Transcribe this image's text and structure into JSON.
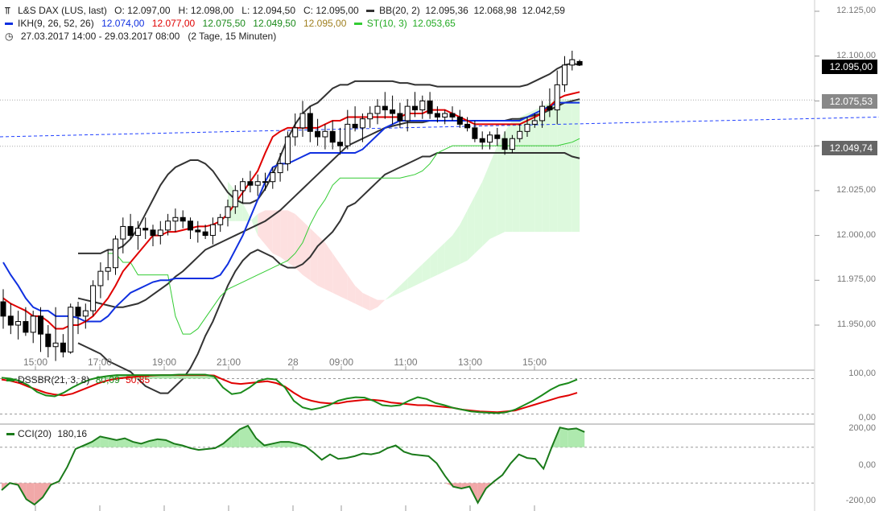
{
  "header": {
    "symbol": "L&S DAX (LUS, last)",
    "ohlc": "O: 12.097,00   H: 12.098,00   L: 12.094,50   C: 12.095,00",
    "bb": "BB(20, 2)  12.095,36  12.068,98  12.042,59",
    "ikh_name": "IKH(9, 26, 52, 26)",
    "ikh_v1": "12.074,00",
    "ikh_v2": "12.077,00",
    "ikh_v3": "12.075,50",
    "ikh_v4": "12.049,50",
    "ikh_v5": "12.095,00",
    "st": "ST(10, 3)  12.053,65",
    "range": "27.03.2017 14:00 - 29.03.2017 08:00   (2 Tage, 15 Minuten)"
  },
  "price_labels": {
    "last": "12.095,00",
    "bb_mid": "12.075,53",
    "st": "12.049,74"
  },
  "price_axis": [
    "12.125,00",
    "12.100,00",
    "12.075,00",
    "12.050,00",
    "12.025,00",
    "12.000,00",
    "11.975,00",
    "11.950,00"
  ],
  "time_axis": [
    "15:00",
    "17:00",
    "19:00",
    "21:00",
    "28",
    "09:00",
    "11:00",
    "13:00",
    "15:00"
  ],
  "dssbr": {
    "name": "DSSBR(21, 3, 8)",
    "v1": "80,09",
    "v2": "50,85",
    "axis": [
      "100,00",
      "0,00"
    ]
  },
  "cci": {
    "name": "CCI(20)",
    "value": "180,16",
    "axis": [
      "200,00",
      "0,00",
      "-200,00"
    ]
  },
  "colors": {
    "up": "#ffffff",
    "down": "#000000",
    "tenkan": "#e00000",
    "kijun": "#1030e0",
    "supertrend": "#33cc33",
    "bb": "#333333",
    "cloud_up": "#ddf9dd",
    "cloud_down": "#fde0e0",
    "dss_main": "#1a8a1a",
    "dss_signal": "#e00000",
    "cci": "#1a7a1a"
  },
  "chart_data": {
    "type": "candlestick",
    "ylim": [
      11930,
      12130
    ],
    "candles": [
      [
        11963,
        11970,
        11948,
        11955
      ],
      [
        11955,
        11962,
        11945,
        11950
      ],
      [
        11950,
        11958,
        11942,
        11952
      ],
      [
        11952,
        11960,
        11944,
        11946
      ],
      [
        11946,
        11958,
        11940,
        11955
      ],
      [
        11955,
        11960,
        11935,
        11945
      ],
      [
        11945,
        11950,
        11932,
        11938
      ],
      [
        11938,
        11960,
        11930,
        11940
      ],
      [
        11940,
        11945,
        11932,
        11935
      ],
      [
        11935,
        11962,
        11934,
        11960
      ],
      [
        11960,
        11963,
        11945,
        11955
      ],
      [
        11955,
        11962,
        11948,
        11958
      ],
      [
        11958,
        11975,
        11955,
        11972
      ],
      [
        11972,
        11985,
        11965,
        11980
      ],
      [
        11980,
        11992,
        11975,
        11982
      ],
      [
        11982,
        12000,
        11978,
        11998
      ],
      [
        11998,
        12010,
        11990,
        12005
      ],
      [
        12005,
        12012,
        11998,
        12000
      ],
      [
        12000,
        12008,
        11992,
        12004
      ],
      [
        12004,
        12010,
        11998,
        12003
      ],
      [
        12003,
        12006,
        11994,
        12000
      ],
      [
        12000,
        12008,
        11995,
        12003
      ],
      [
        12003,
        12012,
        12000,
        12008
      ],
      [
        12008,
        12015,
        12002,
        12010
      ],
      [
        12010,
        12014,
        12004,
        12008
      ],
      [
        12008,
        12010,
        11998,
        12003
      ],
      [
        12003,
        12008,
        11996,
        12002
      ],
      [
        12002,
        12006,
        11998,
        12000
      ],
      [
        12000,
        12010,
        11995,
        12006
      ],
      [
        12006,
        12012,
        12002,
        12010
      ],
      [
        12010,
        12020,
        12005,
        12016
      ],
      [
        12016,
        12028,
        12012,
        12025
      ],
      [
        12025,
        12032,
        12018,
        12030
      ],
      [
        12030,
        12036,
        12024,
        12028
      ],
      [
        12028,
        12034,
        12022,
        12030
      ],
      [
        12030,
        12035,
        12025,
        12030
      ],
      [
        12030,
        12038,
        12026,
        12035
      ],
      [
        12035,
        12046,
        12030,
        12040
      ],
      [
        12040,
        12058,
        12036,
        12055
      ],
      [
        12055,
        12068,
        12050,
        12060
      ],
      [
        12060,
        12075,
        12055,
        12068
      ],
      [
        12068,
        12072,
        12052,
        12058
      ],
      [
        12058,
        12065,
        12050,
        12055
      ],
      [
        12055,
        12062,
        12048,
        12058
      ],
      [
        12058,
        12064,
        12048,
        12052
      ],
      [
        12052,
        12060,
        12045,
        12050
      ],
      [
        12050,
        12070,
        12048,
        12062
      ],
      [
        12062,
        12072,
        12058,
        12060
      ],
      [
        12060,
        12068,
        12052,
        12065
      ],
      [
        12065,
        12072,
        12060,
        12068
      ],
      [
        12068,
        12076,
        12062,
        12072
      ],
      [
        12072,
        12080,
        12065,
        12070
      ],
      [
        12070,
        12078,
        12062,
        12068
      ],
      [
        12068,
        12074,
        12060,
        12064
      ],
      [
        12064,
        12076,
        12058,
        12072
      ],
      [
        12072,
        12080,
        12066,
        12070
      ],
      [
        12070,
        12078,
        12065,
        12075
      ],
      [
        12075,
        12080,
        12065,
        12068
      ],
      [
        12068,
        12072,
        12063,
        12066
      ],
      [
        12066,
        12070,
        12062,
        12068
      ],
      [
        12068,
        12072,
        12064,
        12066
      ],
      [
        12066,
        12070,
        12060,
        12062
      ],
      [
        12062,
        12066,
        12058,
        12060
      ],
      [
        12060,
        12064,
        12052,
        12054
      ],
      [
        12054,
        12058,
        12048,
        12052
      ],
      [
        12052,
        12058,
        12048,
        12056
      ],
      [
        12056,
        12060,
        12050,
        12054
      ],
      [
        12054,
        12058,
        12045,
        12048
      ],
      [
        12048,
        12056,
        12046,
        12054
      ],
      [
        12054,
        12062,
        12052,
        12058
      ],
      [
        12058,
        12066,
        12055,
        12062
      ],
      [
        12062,
        12068,
        12060,
        12064
      ],
      [
        12064,
        12075,
        12060,
        12072
      ],
      [
        12072,
        12082,
        12066,
        12070
      ],
      [
        12070,
        12092,
        12062,
        12084
      ],
      [
        12084,
        12100,
        12080,
        12095
      ],
      [
        12095,
        12103,
        12092,
        12098
      ],
      [
        12097,
        12098,
        12094.5,
        12095
      ]
    ],
    "tenkan": [
      11965,
      11962,
      11960,
      11958,
      11955,
      11955,
      11952,
      11948,
      11948,
      11950,
      11950,
      11952,
      11955,
      11960,
      11965,
      11972,
      11980,
      11985,
      11990,
      11995,
      12000,
      12000,
      12002,
      12002,
      12003,
      12004,
      12005,
      12005,
      12006,
      12008,
      12012,
      12018,
      12024,
      12030,
      12036,
      12046,
      12055,
      12058,
      12060,
      12060,
      12060,
      12060,
      12060,
      12062,
      12064,
      12064,
      12066,
      12066,
      12066,
      12066,
      12066,
      12066,
      12066,
      12066,
      12068,
      12068,
      12068,
      12070,
      12070,
      12070,
      12068,
      12066,
      12064,
      12062,
      12062,
      12062,
      12062,
      12062,
      12062,
      12062,
      12064,
      12066,
      12068,
      12072,
      12076,
      12078,
      12079,
      12080
    ],
    "kijun": [
      11985,
      11978,
      11972,
      11965,
      11960,
      11958,
      11958,
      11955,
      11955,
      11955,
      11954,
      11952,
      11952,
      11952,
      11955,
      11960,
      11964,
      11968,
      11970,
      11972,
      11974,
      11975,
      11975,
      11976,
      11976,
      11976,
      11976,
      11976,
      11976,
      11978,
      11984,
      11992,
      12000,
      12010,
      12020,
      12030,
      12038,
      12040,
      12040,
      12042,
      12044,
      12046,
      12046,
      12046,
      12046,
      12046,
      12046,
      12046,
      12048,
      12052,
      12056,
      12060,
      12062,
      12064,
      12064,
      12064,
      12064,
      12064,
      12064,
      12064,
      12064,
      12064,
      12064,
      12064,
      12064,
      12064,
      12064,
      12064,
      12064,
      12064,
      12066,
      12068,
      12070,
      12072,
      12074,
      12074,
      12074,
      12074
    ],
    "bb_upper": [
      11990,
      11990,
      11990,
      11990,
      11992,
      11992,
      11994,
      11998,
      12004,
      12012,
      12020,
      12028,
      12034,
      12038,
      12040,
      12042,
      12042,
      12040,
      12036,
      12030,
      12024,
      12020,
      12018,
      12018,
      12020,
      12026,
      12034,
      12044,
      12054,
      12062,
      12068,
      12072,
      12074,
      12078,
      12082,
      12084,
      12084,
      12086,
      12086,
      12086,
      12086,
      12086,
      12086,
      12085,
      12085,
      12084,
      12084,
      12084,
      12083,
      12083,
      12083,
      12083,
      12083,
      12083,
      12083,
      12083,
      12083,
      12083,
      12083,
      12083,
      12084,
      12086,
      12088,
      12090,
      12093,
      12095,
      12096,
      12095
    ],
    "bb_middle": [
      11965,
      11964,
      11963,
      11962,
      11961,
      11960,
      11960,
      11961,
      11962,
      11964,
      11967,
      11970,
      11973,
      11977,
      11980,
      11984,
      11988,
      11992,
      11994,
      11996,
      11998,
      12000,
      12002,
      12004,
      12006,
      12008,
      12011,
      12014,
      12018,
      12022,
      12026,
      12030,
      12034,
      12038,
      12042,
      12046,
      12050,
      12052,
      12054,
      12056,
      12058,
      12060,
      12061,
      12062,
      12063,
      12063,
      12063,
      12064,
      12064,
      12064,
      12064,
      12064,
      12064,
      12064,
      12064,
      12064,
      12064,
      12064,
      12065,
      12065,
      12066,
      12067,
      12068,
      12070,
      12072,
      12074,
      12075,
      12076
    ],
    "bb_lower": [
      11940,
      11938,
      11936,
      11934,
      11930,
      11928,
      11926,
      11924,
      11920,
      11916,
      11914,
      11912,
      11912,
      11916,
      11920,
      11926,
      11934,
      11944,
      11952,
      11962,
      11972,
      11980,
      11986,
      11990,
      11992,
      11990,
      11988,
      11984,
      11982,
      11982,
      11984,
      11988,
      11994,
      11998,
      12002,
      12008,
      12016,
      12018,
      12022,
      12026,
      12030,
      12034,
      12036,
      12038,
      12040,
      12042,
      12044,
      12044,
      12046,
      12046,
      12046,
      12046,
      12046,
      12046,
      12046,
      12046,
      12046,
      12046,
      12046,
      12046,
      12046,
      12046,
      12046,
      12046,
      12046,
      12046,
      12044,
      12043
    ],
    "supertrend": [
      11990,
      11990,
      11985,
      11985,
      11978,
      11978,
      11978,
      11978,
      11978,
      11955,
      11945,
      11945,
      11948,
      11954,
      11960,
      11966,
      11970,
      11972,
      11974,
      11976,
      11978,
      11980,
      11982,
      11984,
      11986,
      11990,
      11996,
      12006,
      12014,
      12020,
      12028,
      12032,
      12032,
      12032,
      12032,
      12032,
      12032,
      12032,
      12032,
      12032,
      12033,
      12034,
      12036,
      12040,
      12046,
      12048,
      12050,
      12050,
      12050,
      12050,
      12050,
      12050,
      12050,
      12050,
      12050,
      12050,
      12050,
      12050,
      12050,
      12050,
      12050,
      12051,
      12052,
      12054
    ],
    "cloud_a": [
      12030,
      12025,
      12018,
      12010,
      12000,
      11995,
      11990,
      11988,
      11985,
      11982,
      11978,
      11975,
      11972,
      11970,
      11968,
      11966,
      11964,
      11962,
      11960,
      11958,
      11960,
      11964,
      11968,
      11972,
      11976,
      11980,
      11984,
      11988,
      11992,
      11996,
      12000,
      12006,
      12014,
      12022,
      12030,
      12040,
      12050,
      12058,
      12064,
      12066,
      12068,
      12070,
      12072,
      12074,
      12076,
      12076,
      12076,
      12076
    ],
    "cloud_b": [
      12008,
      12008,
      12008,
      12008,
      12012,
      12014,
      12014,
      12014,
      12014,
      12012,
      12008,
      12004,
      12000,
      11996,
      11990,
      11984,
      11978,
      11972,
      11968,
      11966,
      11964,
      11964,
      11966,
      11968,
      11970,
      11972,
      11974,
      11976,
      11978,
      11980,
      11982,
      11984,
      11986,
      11990,
      11994,
      11998,
      12000,
      12002,
      12002,
      12002,
      12002,
      12002,
      12002,
      12002,
      12002,
      12002,
      12002,
      12002
    ],
    "dssbr_main": [
      92,
      90,
      85,
      75,
      60,
      52,
      50,
      58,
      70,
      80,
      88,
      93,
      96,
      98,
      98,
      98,
      98,
      98,
      98,
      98,
      99,
      99,
      99,
      99,
      95,
      70,
      55,
      58,
      70,
      85,
      90,
      88,
      70,
      40,
      25,
      20,
      24,
      30,
      40,
      45,
      48,
      47,
      40,
      30,
      28,
      30,
      40,
      48,
      44,
      35,
      30,
      24,
      20,
      16,
      14,
      13,
      12,
      14,
      20,
      30,
      40,
      52,
      65,
      75,
      80,
      88
    ],
    "dssbr_signal": [
      88,
      85,
      80,
      72,
      65,
      58,
      54,
      52,
      56,
      64,
      72,
      80,
      86,
      90,
      92,
      94,
      96,
      97,
      98,
      98,
      98,
      98,
      98,
      98,
      97,
      88,
      80,
      78,
      80,
      82,
      84,
      80,
      72,
      58,
      46,
      40,
      36,
      34,
      34,
      38,
      40,
      42,
      42,
      40,
      36,
      34,
      32,
      30,
      30,
      28,
      26,
      24,
      20,
      18,
      16,
      15,
      14,
      16,
      18,
      24,
      30,
      36,
      42,
      48,
      52,
      58
    ],
    "cci_values": [
      -140,
      -100,
      -110,
      -190,
      -220,
      -180,
      -110,
      -90,
      -10,
      90,
      110,
      130,
      160,
      150,
      140,
      150,
      130,
      120,
      135,
      145,
      140,
      120,
      110,
      95,
      85,
      90,
      95,
      120,
      160,
      200,
      220,
      150,
      110,
      120,
      130,
      130,
      120,
      105,
      70,
      30,
      60,
      35,
      40,
      50,
      65,
      60,
      70,
      95,
      110,
      75,
      60,
      55,
      50,
      10,
      -60,
      -120,
      -130,
      -120,
      -210,
      -130,
      -90,
      -55,
      10,
      60,
      40,
      35,
      -20,
      100,
      210,
      200,
      205,
      185
    ]
  }
}
